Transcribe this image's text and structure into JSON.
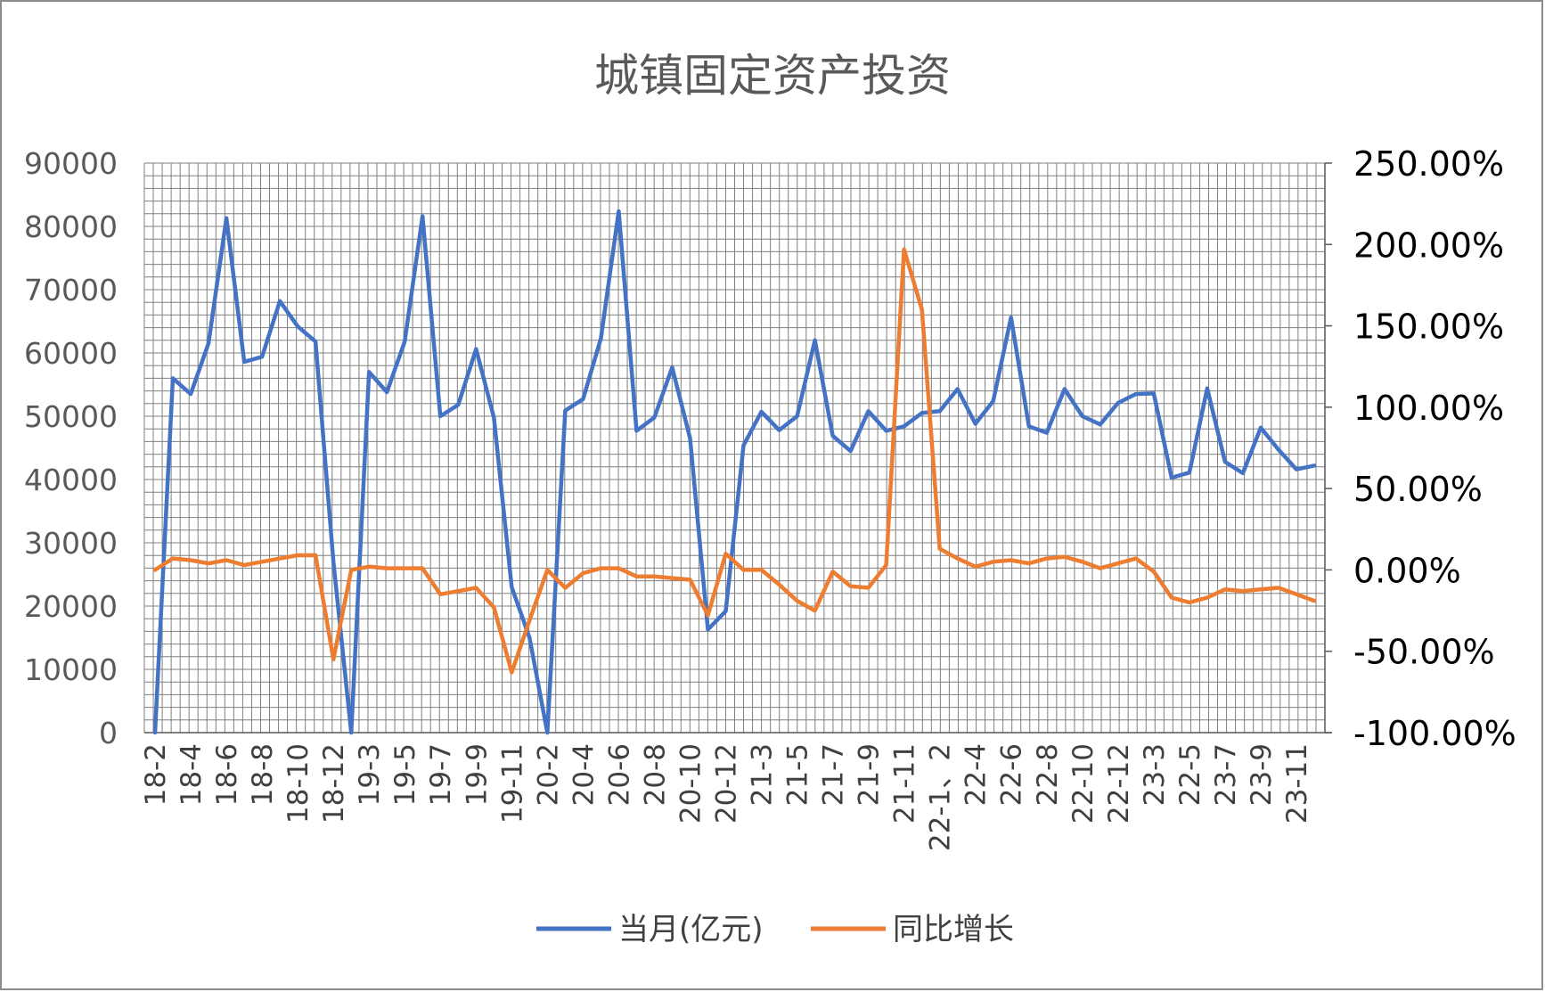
{
  "chart_data": {
    "type": "line",
    "title": "城镇固定资产投资",
    "colors": {
      "series_1": "#4472c4",
      "series_2": "#ed7d31",
      "grid": "#7f7f7f"
    },
    "grid": true,
    "legend_position": "bottom",
    "y_left": {
      "min": 0,
      "max": 90000,
      "ticks": [
        "0",
        "10000",
        "20000",
        "30000",
        "40000",
        "50000",
        "60000",
        "70000",
        "80000",
        "90000"
      ]
    },
    "y_right": {
      "min": -1.0,
      "max": 2.5,
      "ticks": [
        "-100.00%",
        "-50.00%",
        "0.00%",
        "50.00%",
        "100.00%",
        "150.00%",
        "200.00%",
        "250.00%"
      ]
    },
    "x_tick_labels": [
      "18-2",
      "18-4",
      "18-6",
      "18-8",
      "18-10",
      "18-12",
      "19-3",
      "19-5",
      "19-7",
      "19-9",
      "19-11",
      "20-2",
      "20-4",
      "20-6",
      "20-8",
      "20-10",
      "20-12",
      "21-3",
      "21-5",
      "21-7",
      "21-9",
      "21-11",
      "22-1、2",
      "22-4",
      "22-6",
      "22-8",
      "22-10",
      "22-12",
      "23-3",
      "22-5",
      "23-7",
      "23-9",
      "23-11"
    ],
    "series": [
      {
        "name": "当月(亿元)",
        "axis": "left",
        "values": [
          0,
          56000,
          53500,
          61500,
          81300,
          58600,
          59400,
          68200,
          64200,
          61800,
          27000,
          0,
          57000,
          53800,
          61800,
          81600,
          50000,
          51800,
          60600,
          49800,
          23000,
          15000,
          0,
          50900,
          52700,
          62300,
          82400,
          47700,
          49800,
          57700,
          46500,
          16300,
          19200,
          45400,
          50700,
          47800,
          50000,
          62000,
          46900,
          44500,
          50800,
          47700,
          48400,
          50500,
          50800,
          54300,
          48800,
          52400,
          65600,
          48400,
          47400,
          54300,
          50000,
          48700,
          52100,
          53500,
          53600,
          40300,
          41100,
          54400,
          42800,
          41000,
          48200,
          44700,
          41600,
          42200
        ]
      },
      {
        "name": "同比增长",
        "axis": "right",
        "values": [
          0.0,
          0.07,
          0.06,
          0.04,
          0.06,
          0.03,
          0.05,
          0.07,
          0.09,
          0.09,
          -0.55,
          0.0,
          0.02,
          0.01,
          0.01,
          0.01,
          -0.15,
          -0.13,
          -0.11,
          -0.23,
          -0.63,
          -0.31,
          0.0,
          -0.11,
          -0.02,
          0.01,
          0.01,
          -0.04,
          -0.04,
          -0.05,
          -0.06,
          -0.28,
          0.1,
          0.0,
          0.0,
          -0.09,
          -0.19,
          -0.25,
          -0.01,
          -0.1,
          -0.11,
          0.03,
          1.97,
          1.6,
          0.13,
          0.07,
          0.02,
          0.05,
          0.06,
          0.04,
          0.07,
          0.08,
          0.05,
          0.01,
          0.04,
          0.07,
          -0.01,
          -0.17,
          -0.2,
          -0.17,
          -0.12,
          -0.13,
          -0.12,
          -0.11,
          -0.15,
          -0.19
        ]
      }
    ]
  },
  "legend": [
    {
      "label": "当月(亿元)",
      "color": "#4472c4"
    },
    {
      "label": "同比增长",
      "color": "#ed7d31"
    }
  ]
}
